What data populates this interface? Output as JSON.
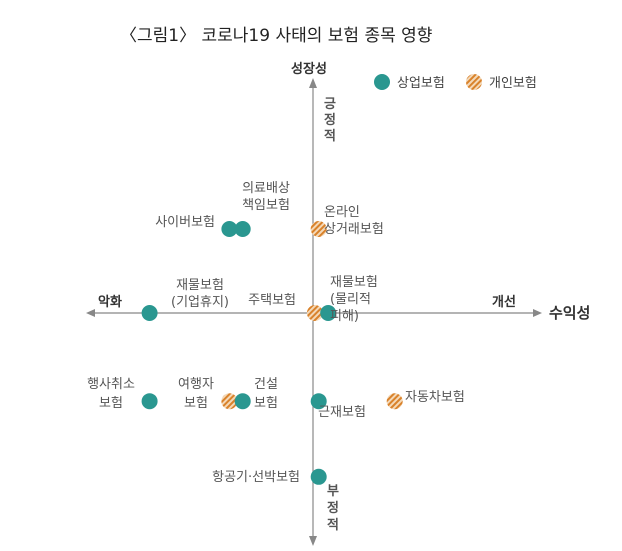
{
  "chart_data": {
    "type": "scatter",
    "title": "〈그림1〉 코로나19 사태의 보험 종목 영향",
    "axes": {
      "x_label": "수익성",
      "x_negative": "악화",
      "x_positive": "개선",
      "y_label": "성장성",
      "y_positive": "긍정적",
      "y_negative": "부정적"
    },
    "legend": {
      "placement": "top-right",
      "items": [
        {
          "name": "상업보험",
          "color": "#2a9790",
          "pattern": "solid"
        },
        {
          "name": "개인보험",
          "color": "#e08c3a",
          "pattern": "hatch"
        }
      ]
    },
    "points": [
      {
        "label": "사이버보험",
        "series": "상업보험",
        "x": -2.2,
        "y": 2.0
      },
      {
        "label": "의료배상 책임보험",
        "series": "상업보험",
        "x": -1.85,
        "y": 2.0
      },
      {
        "label": "온라인 상거래보험",
        "series": "개인보험",
        "x": 0.15,
        "y": 2.0
      },
      {
        "label": "재물보험 (기업휴지)",
        "series": "상업보험",
        "x": -4.3,
        "y": 0.0
      },
      {
        "label": "주택보험",
        "series": "개인보험",
        "x": 0.05,
        "y": 0.0
      },
      {
        "label": "재물보험 (물리적 피해)",
        "series": "상업보험",
        "x": 0.4,
        "y": 0.0
      },
      {
        "label": "행사취소 보험",
        "series": "상업보험",
        "x": -4.3,
        "y": -2.1
      },
      {
        "label": "여행자 보험",
        "series": "개인보험",
        "x": -2.2,
        "y": -2.1
      },
      {
        "label": "건설 보험",
        "series": "상업보험",
        "x": -1.85,
        "y": -2.1
      },
      {
        "label": "근재보험",
        "series": "상업보험",
        "x": 0.15,
        "y": -2.1
      },
      {
        "label": "자동차보험",
        "series": "개인보험",
        "x": 2.15,
        "y": -2.1
      },
      {
        "label": "항공기·선박보험",
        "series": "상업보험",
        "x": 0.15,
        "y": -3.9
      }
    ]
  }
}
